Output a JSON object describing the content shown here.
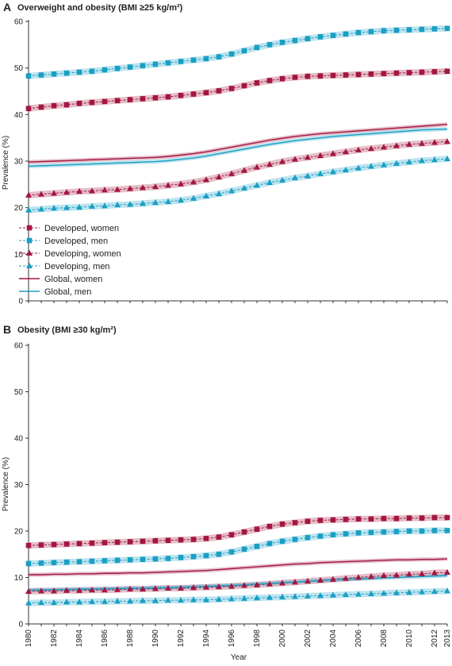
{
  "chart_data": [
    {
      "type": "line",
      "panel_letter": "A",
      "title": "Overweight and obesity (BMI ≥25 kg/m²)",
      "xlabel": "",
      "ylabel": "Prevalence (%)",
      "ylim": [
        0,
        60
      ],
      "yticks": [
        0,
        10,
        20,
        30,
        40,
        50,
        60
      ],
      "x": [
        1980,
        1981,
        1982,
        1983,
        1984,
        1985,
        1986,
        1987,
        1988,
        1989,
        1990,
        1991,
        1992,
        1993,
        1994,
        1995,
        1996,
        1997,
        1998,
        1999,
        2000,
        2001,
        2002,
        2003,
        2004,
        2005,
        2006,
        2007,
        2008,
        2009,
        2010,
        2011,
        2012,
        2013
      ],
      "legend_position": "bottom-left",
      "series": [
        {
          "name": "Developed, women",
          "color": "#a3173f",
          "marker": "square",
          "style": "dashed",
          "values": [
            41.3,
            41.6,
            41.9,
            42.1,
            42.4,
            42.6,
            42.8,
            43.0,
            43.2,
            43.4,
            43.6,
            43.8,
            44.1,
            44.4,
            44.7,
            45.1,
            45.6,
            46.2,
            46.8,
            47.3,
            47.7,
            48.0,
            48.2,
            48.3,
            48.4,
            48.5,
            48.6,
            48.7,
            48.8,
            48.9,
            49.0,
            49.1,
            49.2,
            49.3
          ]
        },
        {
          "name": "Developed, men",
          "color": "#1a9fc4",
          "marker": "square",
          "style": "dashed",
          "values": [
            48.3,
            48.5,
            48.7,
            48.9,
            49.1,
            49.3,
            49.6,
            49.9,
            50.2,
            50.5,
            50.8,
            51.1,
            51.4,
            51.7,
            52.0,
            52.4,
            53.0,
            53.7,
            54.4,
            55.0,
            55.5,
            55.9,
            56.3,
            56.7,
            57.0,
            57.3,
            57.6,
            57.8,
            58.0,
            58.1,
            58.2,
            58.3,
            58.4,
            58.5
          ]
        },
        {
          "name": "Developing, women",
          "color": "#a3173f",
          "marker": "triangle",
          "style": "dashed",
          "values": [
            22.7,
            22.9,
            23.1,
            23.3,
            23.5,
            23.6,
            23.8,
            23.9,
            24.1,
            24.3,
            24.5,
            24.8,
            25.1,
            25.5,
            26.0,
            26.6,
            27.3,
            28.0,
            28.7,
            29.3,
            29.9,
            30.4,
            30.8,
            31.2,
            31.6,
            32.0,
            32.4,
            32.7,
            33.0,
            33.3,
            33.6,
            33.8,
            34.0,
            34.2
          ]
        },
        {
          "name": "Developing, men",
          "color": "#1a9fc4",
          "marker": "triangle",
          "style": "dashed",
          "values": [
            19.5,
            19.7,
            19.9,
            20.0,
            20.1,
            20.3,
            20.4,
            20.6,
            20.7,
            20.9,
            21.1,
            21.3,
            21.6,
            22.0,
            22.5,
            23.0,
            23.6,
            24.2,
            24.8,
            25.4,
            25.9,
            26.4,
            26.8,
            27.3,
            27.7,
            28.1,
            28.5,
            28.9,
            29.2,
            29.5,
            29.8,
            30.1,
            30.3,
            30.5
          ]
        },
        {
          "name": "Global, women",
          "color": "#a3173f",
          "marker": "none",
          "style": "solid",
          "values": [
            29.8,
            29.9,
            30.0,
            30.1,
            30.2,
            30.3,
            30.4,
            30.5,
            30.6,
            30.7,
            30.8,
            31.0,
            31.3,
            31.6,
            32.0,
            32.5,
            33.0,
            33.5,
            34.0,
            34.5,
            34.9,
            35.3,
            35.6,
            35.9,
            36.1,
            36.3,
            36.5,
            36.7,
            36.9,
            37.1,
            37.3,
            37.5,
            37.7,
            37.9
          ]
        },
        {
          "name": "Global, men",
          "color": "#1a9fc4",
          "marker": "none",
          "style": "solid",
          "values": [
            28.9,
            29.0,
            29.1,
            29.2,
            29.3,
            29.4,
            29.5,
            29.6,
            29.7,
            29.8,
            29.9,
            30.1,
            30.4,
            30.7,
            31.1,
            31.6,
            32.1,
            32.6,
            33.1,
            33.6,
            34.0,
            34.4,
            34.7,
            35.0,
            35.3,
            35.5,
            35.7,
            35.9,
            36.1,
            36.3,
            36.5,
            36.7,
            36.8,
            36.9
          ]
        }
      ],
      "legend": [
        "Developed, women",
        "Developed, men",
        "Developing, women",
        "Developing, men",
        "Global, women",
        "Global, men"
      ]
    },
    {
      "type": "line",
      "panel_letter": "B",
      "title": "Obesity (BMI ≥30 kg/m²)",
      "xlabel": "Year",
      "ylabel": "Prevalence (%)",
      "ylim": [
        0,
        60
      ],
      "yticks": [
        0,
        10,
        20,
        30,
        40,
        50,
        60
      ],
      "x": [
        1980,
        1981,
        1982,
        1983,
        1984,
        1985,
        1986,
        1987,
        1988,
        1989,
        1990,
        1991,
        1992,
        1993,
        1994,
        1995,
        1996,
        1997,
        1998,
        1999,
        2000,
        2001,
        2002,
        2003,
        2004,
        2005,
        2006,
        2007,
        2008,
        2009,
        2010,
        2011,
        2012,
        2013
      ],
      "xticks": [
        "1980",
        "1982",
        "1984",
        "1986",
        "1988",
        "1990",
        "1992",
        "1994",
        "1996",
        "1998",
        "2000",
        "2002",
        "2004",
        "2006",
        "2008",
        "2010",
        "2012",
        "2013"
      ],
      "series": [
        {
          "name": "Developed, women",
          "color": "#a3173f",
          "marker": "square",
          "style": "dashed",
          "values": [
            16.9,
            17.0,
            17.1,
            17.2,
            17.3,
            17.4,
            17.5,
            17.6,
            17.7,
            17.8,
            17.9,
            18.0,
            18.1,
            18.2,
            18.4,
            18.7,
            19.2,
            19.8,
            20.4,
            21.0,
            21.5,
            21.8,
            22.1,
            22.3,
            22.4,
            22.5,
            22.6,
            22.6,
            22.7,
            22.7,
            22.8,
            22.8,
            22.9,
            22.9
          ]
        },
        {
          "name": "Developed, men",
          "color": "#1a9fc4",
          "marker": "square",
          "style": "dashed",
          "values": [
            13.0,
            13.1,
            13.2,
            13.3,
            13.4,
            13.5,
            13.6,
            13.7,
            13.8,
            13.9,
            14.0,
            14.1,
            14.3,
            14.5,
            14.7,
            15.0,
            15.5,
            16.1,
            16.7,
            17.3,
            17.8,
            18.2,
            18.6,
            18.9,
            19.2,
            19.4,
            19.6,
            19.7,
            19.8,
            19.9,
            20.0,
            20.0,
            20.1,
            20.1
          ]
        },
        {
          "name": "Developing, women",
          "color": "#a3173f",
          "marker": "triangle",
          "style": "dashed",
          "values": [
            7.0,
            7.1,
            7.1,
            7.2,
            7.2,
            7.3,
            7.3,
            7.4,
            7.5,
            7.5,
            7.6,
            7.7,
            7.7,
            7.8,
            7.9,
            8.0,
            8.1,
            8.3,
            8.4,
            8.6,
            8.8,
            9.0,
            9.2,
            9.4,
            9.6,
            9.8,
            10.0,
            10.2,
            10.4,
            10.5,
            10.7,
            10.8,
            11.0,
            11.1
          ]
        },
        {
          "name": "Developing, men",
          "color": "#1a9fc4",
          "marker": "triangle",
          "style": "dashed",
          "values": [
            4.5,
            4.6,
            4.6,
            4.7,
            4.7,
            4.8,
            4.8,
            4.9,
            4.9,
            5.0,
            5.0,
            5.1,
            5.1,
            5.2,
            5.2,
            5.3,
            5.4,
            5.5,
            5.6,
            5.7,
            5.8,
            5.9,
            6.0,
            6.1,
            6.2,
            6.3,
            6.4,
            6.5,
            6.6,
            6.7,
            6.8,
            6.9,
            7.0,
            7.1
          ]
        },
        {
          "name": "Global, women",
          "color": "#a3173f",
          "marker": "none",
          "style": "solid",
          "values": [
            10.6,
            10.6,
            10.7,
            10.7,
            10.8,
            10.8,
            10.9,
            10.9,
            11.0,
            11.0,
            11.1,
            11.2,
            11.3,
            11.4,
            11.5,
            11.7,
            11.9,
            12.1,
            12.3,
            12.5,
            12.7,
            12.9,
            13.0,
            13.2,
            13.3,
            13.4,
            13.5,
            13.6,
            13.7,
            13.8,
            13.8,
            13.9,
            13.9,
            14.0
          ]
        },
        {
          "name": "Global, men",
          "color": "#1a9fc4",
          "marker": "none",
          "style": "solid",
          "values": [
            7.3,
            7.3,
            7.4,
            7.4,
            7.5,
            7.5,
            7.6,
            7.6,
            7.7,
            7.7,
            7.8,
            7.8,
            7.9,
            8.0,
            8.1,
            8.2,
            8.3,
            8.4,
            8.6,
            8.7,
            8.9,
            9.0,
            9.2,
            9.3,
            9.5,
            9.6,
            9.7,
            9.8,
            9.9,
            10.0,
            10.1,
            10.2,
            10.3,
            10.4
          ]
        }
      ]
    }
  ]
}
